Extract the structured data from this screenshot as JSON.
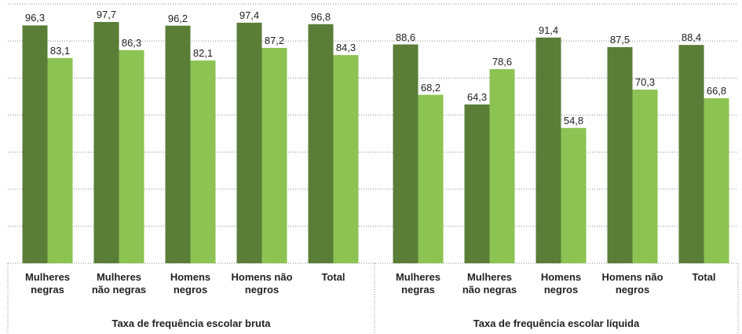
{
  "chart_data": {
    "type": "bar",
    "categories": [
      "Mulheres negras",
      "Mulheres não negras",
      "Homens negros",
      "Homens não negros",
      "Total",
      "Mulheres negras",
      "Mulheres não negras",
      "Homens negros",
      "Homens não negros",
      "Total"
    ],
    "groups": [
      "Taxa de frequência escolar bruta",
      "Taxa de frequência escolar líquida"
    ],
    "series": [
      {
        "color": "#5a7d38",
        "values": [
          96.3,
          97.7,
          96.2,
          97.4,
          96.8,
          88.6,
          64.3,
          91.4,
          87.5,
          88.4
        ],
        "value_labels": [
          "96,3",
          "97,7",
          "96,2",
          "97,4",
          "96,8",
          "88,6",
          "64,3",
          "91,4",
          "87,5",
          "88,4"
        ]
      },
      {
        "color": "#8cc353",
        "values": [
          83.1,
          86.3,
          82.1,
          87.2,
          84.3,
          68.2,
          78.6,
          54.8,
          70.3,
          66.8
        ],
        "value_labels": [
          "83,1",
          "86,3",
          "82,1",
          "87,2",
          "84,3",
          "68,2",
          "78,6",
          "54,8",
          "70,3",
          "66,8"
        ]
      }
    ],
    "ylim": [
      0,
      105
    ],
    "yticks": [
      0,
      15,
      30,
      45,
      60,
      75,
      90,
      105
    ],
    "grid": true
  }
}
